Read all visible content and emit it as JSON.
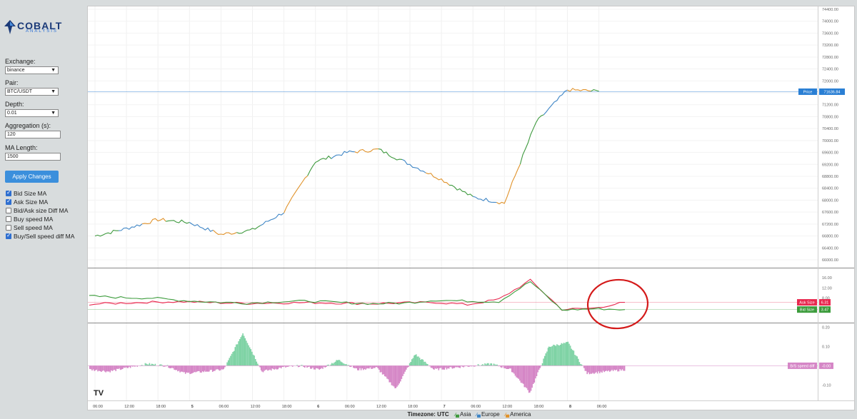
{
  "brand": {
    "name": "COBALT",
    "sub": "ANALYSIS"
  },
  "controls": {
    "exchange": {
      "label": "Exchange:",
      "value": "binance"
    },
    "pair": {
      "label": "Pair:",
      "value": "BTC/USDT"
    },
    "depth": {
      "label": "Depth:",
      "value": "0.01"
    },
    "aggregation": {
      "label": "Aggregation (s):",
      "value": "120"
    },
    "ma_length": {
      "label": "MA Length:",
      "value": "1500"
    },
    "apply_label": "Apply Changes"
  },
  "indicators": [
    {
      "label": "Bid Size MA",
      "checked": true
    },
    {
      "label": "Ask Size MA",
      "checked": true
    },
    {
      "label": "Bid/Ask size Diff MA",
      "checked": false
    },
    {
      "label": "Buy speed MA",
      "checked": false
    },
    {
      "label": "Sell speed MA",
      "checked": false
    },
    {
      "label": "Buy/Sell speed diff MA",
      "checked": true
    }
  ],
  "colors": {
    "asia": "#3f9a3f",
    "europe": "#3f86c6",
    "america": "#e0922a",
    "ask": "#e8294f",
    "bid": "#3c9c3c",
    "price_line": "#2a7fd4",
    "diff_pos": "#7fd3a5",
    "diff_neg": "#d586c6",
    "annotation": "#d41a1a"
  },
  "chart_data": [
    {
      "type": "line",
      "name": "price",
      "x": [
        "06:00",
        "12:00",
        "18:00",
        "5",
        "06:00",
        "12:00",
        "18:00",
        "6",
        "06:00",
        "12:00",
        "18:00",
        "7",
        "06:00",
        "12:00",
        "18:00",
        "8",
        "06:00"
      ],
      "values": [
        66800,
        67050,
        67350,
        67250,
        66850,
        67000,
        67600,
        69300,
        69600,
        69700,
        69200,
        68700,
        68100,
        67900,
        70600,
        71700,
        71650
      ],
      "y_ticks": [
        "74400.00",
        "74000.00",
        "73600.00",
        "73200.00",
        "72800.00",
        "72400.00",
        "72000.00",
        "71600.00",
        "71200.00",
        "70800.00",
        "70400.00",
        "70000.00",
        "69600.00",
        "69200.00",
        "68800.00",
        "68400.00",
        "68000.00",
        "67600.00",
        "67200.00",
        "66800.00",
        "66400.00",
        "66000.00"
      ],
      "ylim": [
        66000,
        74400
      ],
      "last_label": "Price",
      "last_value": "71636.84"
    },
    {
      "type": "line",
      "series": [
        {
          "name": "Ask Size",
          "values": [
            5.6,
            6.0,
            6.4,
            6.6,
            6.2,
            5.9,
            6.1,
            6.2,
            6.0,
            5.8,
            6.1,
            6.3,
            5.4,
            7.5,
            15.0,
            3.5,
            4.0,
            6.3
          ]
        },
        {
          "name": "Bid Size",
          "values": [
            8.8,
            8.2,
            8.0,
            7.0,
            6.4,
            6.0,
            6.6,
            6.8,
            6.2,
            5.8,
            6.0,
            7.2,
            6.8,
            6.6,
            14.5,
            3.3,
            3.8,
            3.47
          ]
        }
      ],
      "y_ticks": [
        "16.00",
        "12.00",
        "8.00",
        "4.00"
      ],
      "ylim": [
        0,
        18
      ],
      "last_values": [
        "6.31",
        "3.47"
      ]
    },
    {
      "type": "area",
      "name": "B/S speed diff",
      "values": [
        -0.02,
        -0.03,
        -0.01,
        0.01,
        0.0,
        -0.04,
        -0.03,
        -0.02,
        0.17,
        -0.03,
        -0.01,
        0.0,
        -0.02,
        0.03,
        -0.02,
        -0.01,
        -0.12,
        0.06,
        -0.02,
        -0.01,
        0.0,
        0.01,
        -0.02,
        -0.14,
        0.1,
        0.12,
        -0.04,
        -0.03,
        -0.02
      ],
      "y_ticks": [
        "0.20",
        "0.10",
        "-0.10"
      ],
      "ylim": [
        -0.18,
        0.22
      ],
      "last_label": "B/S speed diff",
      "last_value": "-0.00"
    }
  ],
  "legend": {
    "timezone": "Timezone: UTC",
    "items": [
      "Asia",
      "Europe",
      "America"
    ]
  }
}
